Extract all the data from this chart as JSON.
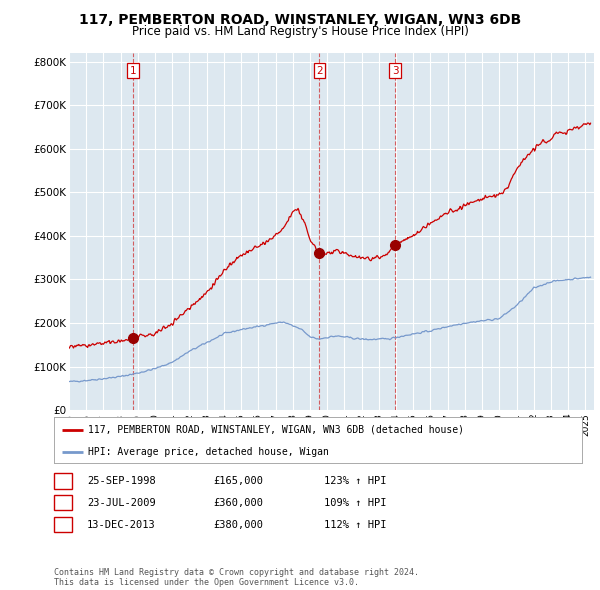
{
  "title": "117, PEMBERTON ROAD, WINSTANLEY, WIGAN, WN3 6DB",
  "subtitle": "Price paid vs. HM Land Registry's House Price Index (HPI)",
  "title_fontsize": 10,
  "subtitle_fontsize": 8.5,
  "ylabel_ticks": [
    "£0",
    "£100K",
    "£200K",
    "£300K",
    "£400K",
    "£500K",
    "£600K",
    "£700K",
    "£800K"
  ],
  "ytick_values": [
    0,
    100000,
    200000,
    300000,
    400000,
    500000,
    600000,
    700000,
    800000
  ],
  "ylim": [
    0,
    820000
  ],
  "xlim_start": 1995.0,
  "xlim_end": 2025.5,
  "red_line_color": "#cc0000",
  "blue_line_color": "#7799cc",
  "bg_fill_color": "#dde8f0",
  "background_color": "#ffffff",
  "grid_color": "#ffffff",
  "sale_dates": [
    1998.73,
    2009.55,
    2013.95
  ],
  "sale_prices": [
    165000,
    360000,
    380000
  ],
  "sale_labels": [
    "1",
    "2",
    "3"
  ],
  "legend_red_label": "117, PEMBERTON ROAD, WINSTANLEY, WIGAN, WN3 6DB (detached house)",
  "legend_blue_label": "HPI: Average price, detached house, Wigan",
  "table_rows": [
    [
      "1",
      "25-SEP-1998",
      "£165,000",
      "123% ↑ HPI"
    ],
    [
      "2",
      "23-JUL-2009",
      "£360,000",
      "109% ↑ HPI"
    ],
    [
      "3",
      "13-DEC-2013",
      "£380,000",
      "112% ↑ HPI"
    ]
  ],
  "footnote": "Contains HM Land Registry data © Crown copyright and database right 2024.\nThis data is licensed under the Open Government Licence v3.0."
}
